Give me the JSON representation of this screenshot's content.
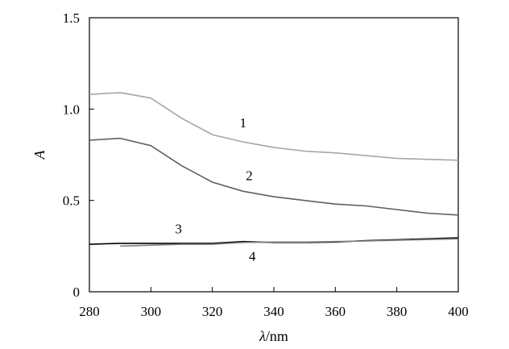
{
  "chart_data": {
    "type": "line",
    "xlabel_italic": "λ",
    "xlabel_rest": "/nm",
    "ylabel": "A",
    "xlim": [
      280,
      400
    ],
    "ylim": [
      0,
      1.5
    ],
    "xticks": [
      280,
      300,
      320,
      340,
      360,
      380,
      400
    ],
    "yticks": [
      0,
      0.5,
      1.0,
      1.5
    ],
    "ytick_labels": [
      "0",
      "0.5",
      "1.0",
      "1.5"
    ],
    "grid": false,
    "series": [
      {
        "name": "1",
        "color": "#a6a6a6",
        "x": [
          280,
          290,
          300,
          310,
          320,
          330,
          340,
          350,
          360,
          370,
          380,
          390,
          400
        ],
        "y": [
          1.08,
          1.09,
          1.06,
          0.95,
          0.86,
          0.82,
          0.79,
          0.77,
          0.76,
          0.745,
          0.73,
          0.725,
          0.72
        ],
        "label_at": [
          330,
          0.9
        ]
      },
      {
        "name": "2",
        "color": "#5f5f5f",
        "x": [
          280,
          290,
          300,
          310,
          320,
          330,
          340,
          350,
          360,
          370,
          380,
          390,
          400
        ],
        "y": [
          0.83,
          0.84,
          0.8,
          0.69,
          0.6,
          0.55,
          0.52,
          0.5,
          0.48,
          0.47,
          0.45,
          0.43,
          0.42
        ],
        "label_at": [
          332,
          0.61
        ]
      },
      {
        "name": "3",
        "color": "#000000",
        "x": [
          280,
          290,
          300,
          310,
          320,
          330,
          340,
          350,
          360,
          370,
          380,
          390,
          400
        ],
        "y": [
          0.26,
          0.265,
          0.265,
          0.265,
          0.265,
          0.275,
          0.27,
          0.27,
          0.272,
          0.28,
          0.285,
          0.29,
          0.295
        ],
        "label_at": [
          309,
          0.32
        ]
      },
      {
        "name": "4",
        "color": "#7f7f7f",
        "x": [
          290,
          300,
          310,
          320,
          330,
          340,
          350,
          360,
          370,
          380,
          390,
          400
        ],
        "y": [
          0.25,
          0.255,
          0.26,
          0.26,
          0.27,
          0.272,
          0.272,
          0.275,
          0.278,
          0.282,
          0.286,
          0.29
        ],
        "label_at": [
          333,
          0.17
        ]
      }
    ]
  }
}
